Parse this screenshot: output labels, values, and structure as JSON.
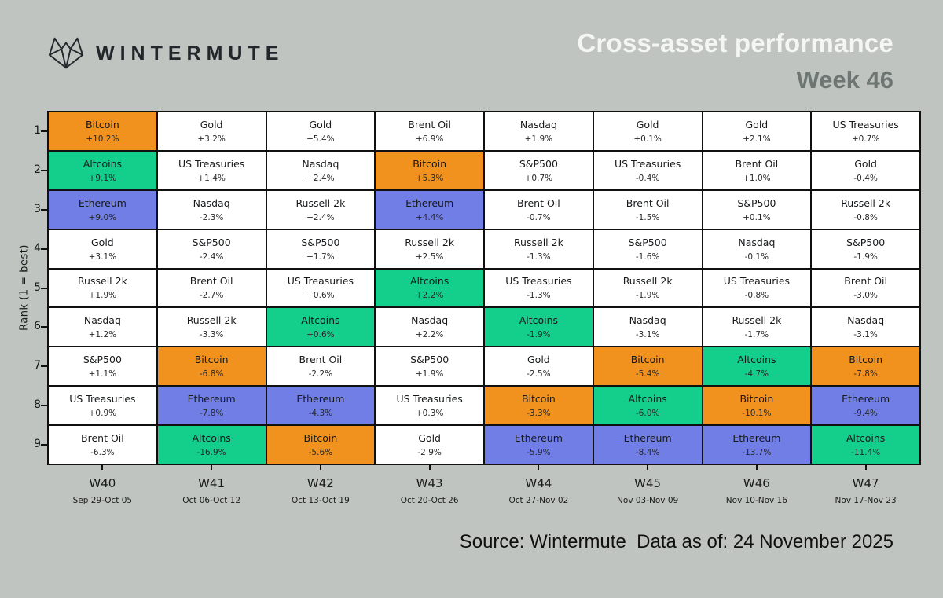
{
  "header": {
    "brand": "WINTERMUTE",
    "title": "Cross-asset performance",
    "subtitle": "Week 46"
  },
  "colors": {
    "background": "#BFC4C1",
    "grid_line": "#101010",
    "title": "#F3F6F3",
    "subtitle": "#6E7673",
    "logo": "#22272B",
    "bitcoin_orange": "#F2921E",
    "ethereum_blue": "#707EE6",
    "altcoins_green": "#14CE8C",
    "cell_white": "#FFFFFF"
  },
  "chart_data": {
    "type": "heatmap",
    "title": "Cross-asset performance",
    "subtitle": "Week 46",
    "ylabel": "Rank (1 = best)",
    "ranks": [
      "1",
      "2",
      "3",
      "4",
      "5",
      "6",
      "7",
      "8",
      "9"
    ],
    "asset_colors": {
      "Bitcoin": "#F2921E",
      "Ethereum": "#707EE6",
      "Altcoins": "#14CE8C",
      "default": "#FFFFFF"
    },
    "columns": [
      {
        "week": "W40",
        "dates": "Sep 29-Oct 05",
        "cells": [
          {
            "asset": "Bitcoin",
            "change": "+10.2%"
          },
          {
            "asset": "Altcoins",
            "change": "+9.1%"
          },
          {
            "asset": "Ethereum",
            "change": "+9.0%"
          },
          {
            "asset": "Gold",
            "change": "+3.1%"
          },
          {
            "asset": "Russell 2k",
            "change": "+1.9%"
          },
          {
            "asset": "Nasdaq",
            "change": "+1.2%"
          },
          {
            "asset": "S&P500",
            "change": "+1.1%"
          },
          {
            "asset": "US Treasuries",
            "change": "+0.9%"
          },
          {
            "asset": "Brent Oil",
            "change": "-6.3%"
          }
        ]
      },
      {
        "week": "W41",
        "dates": "Oct 06-Oct 12",
        "cells": [
          {
            "asset": "Gold",
            "change": "+3.2%"
          },
          {
            "asset": "US Treasuries",
            "change": "+1.4%"
          },
          {
            "asset": "Nasdaq",
            "change": "-2.3%"
          },
          {
            "asset": "S&P500",
            "change": "-2.4%"
          },
          {
            "asset": "Brent Oil",
            "change": "-2.7%"
          },
          {
            "asset": "Russell 2k",
            "change": "-3.3%"
          },
          {
            "asset": "Bitcoin",
            "change": "-6.8%"
          },
          {
            "asset": "Ethereum",
            "change": "-7.8%"
          },
          {
            "asset": "Altcoins",
            "change": "-16.9%"
          }
        ]
      },
      {
        "week": "W42",
        "dates": "Oct 13-Oct 19",
        "cells": [
          {
            "asset": "Gold",
            "change": "+5.4%"
          },
          {
            "asset": "Nasdaq",
            "change": "+2.4%"
          },
          {
            "asset": "Russell 2k",
            "change": "+2.4%"
          },
          {
            "asset": "S&P500",
            "change": "+1.7%"
          },
          {
            "asset": "US Treasuries",
            "change": "+0.6%"
          },
          {
            "asset": "Altcoins",
            "change": "+0.6%"
          },
          {
            "asset": "Brent Oil",
            "change": "-2.2%"
          },
          {
            "asset": "Ethereum",
            "change": "-4.3%"
          },
          {
            "asset": "Bitcoin",
            "change": "-5.6%"
          }
        ]
      },
      {
        "week": "W43",
        "dates": "Oct 20-Oct 26",
        "cells": [
          {
            "asset": "Brent Oil",
            "change": "+6.9%"
          },
          {
            "asset": "Bitcoin",
            "change": "+5.3%"
          },
          {
            "asset": "Ethereum",
            "change": "+4.4%"
          },
          {
            "asset": "Russell 2k",
            "change": "+2.5%"
          },
          {
            "asset": "Altcoins",
            "change": "+2.2%"
          },
          {
            "asset": "Nasdaq",
            "change": "+2.2%"
          },
          {
            "asset": "S&P500",
            "change": "+1.9%"
          },
          {
            "asset": "US Treasuries",
            "change": "+0.3%"
          },
          {
            "asset": "Gold",
            "change": "-2.9%"
          }
        ]
      },
      {
        "week": "W44",
        "dates": "Oct 27-Nov 02",
        "cells": [
          {
            "asset": "Nasdaq",
            "change": "+1.9%"
          },
          {
            "asset": "S&P500",
            "change": "+0.7%"
          },
          {
            "asset": "Brent Oil",
            "change": "-0.7%"
          },
          {
            "asset": "Russell 2k",
            "change": "-1.3%"
          },
          {
            "asset": "US Treasuries",
            "change": "-1.3%"
          },
          {
            "asset": "Altcoins",
            "change": "-1.9%"
          },
          {
            "asset": "Gold",
            "change": "-2.5%"
          },
          {
            "asset": "Bitcoin",
            "change": "-3.3%"
          },
          {
            "asset": "Ethereum",
            "change": "-5.9%"
          }
        ]
      },
      {
        "week": "W45",
        "dates": "Nov 03-Nov 09",
        "cells": [
          {
            "asset": "Gold",
            "change": "+0.1%"
          },
          {
            "asset": "US Treasuries",
            "change": "-0.4%"
          },
          {
            "asset": "Brent Oil",
            "change": "-1.5%"
          },
          {
            "asset": "S&P500",
            "change": "-1.6%"
          },
          {
            "asset": "Russell 2k",
            "change": "-1.9%"
          },
          {
            "asset": "Nasdaq",
            "change": "-3.1%"
          },
          {
            "asset": "Bitcoin",
            "change": "-5.4%"
          },
          {
            "asset": "Altcoins",
            "change": "-6.0%"
          },
          {
            "asset": "Ethereum",
            "change": "-8.4%"
          }
        ]
      },
      {
        "week": "W46",
        "dates": "Nov 10-Nov 16",
        "cells": [
          {
            "asset": "Gold",
            "change": "+2.1%"
          },
          {
            "asset": "Brent Oil",
            "change": "+1.0%"
          },
          {
            "asset": "S&P500",
            "change": "+0.1%"
          },
          {
            "asset": "Nasdaq",
            "change": "-0.1%"
          },
          {
            "asset": "US Treasuries",
            "change": "-0.8%"
          },
          {
            "asset": "Russell 2k",
            "change": "-1.7%"
          },
          {
            "asset": "Altcoins",
            "change": "-4.7%"
          },
          {
            "asset": "Bitcoin",
            "change": "-10.1%"
          },
          {
            "asset": "Ethereum",
            "change": "-13.7%"
          }
        ]
      },
      {
        "week": "W47",
        "dates": "Nov 17-Nov 23",
        "cells": [
          {
            "asset": "US Treasuries",
            "change": "+0.7%"
          },
          {
            "asset": "Gold",
            "change": "-0.4%"
          },
          {
            "asset": "Russell 2k",
            "change": "-0.8%"
          },
          {
            "asset": "S&P500",
            "change": "-1.9%"
          },
          {
            "asset": "Brent Oil",
            "change": "-3.0%"
          },
          {
            "asset": "Nasdaq",
            "change": "-3.1%"
          },
          {
            "asset": "Bitcoin",
            "change": "-7.8%"
          },
          {
            "asset": "Ethereum",
            "change": "-9.4%"
          },
          {
            "asset": "Altcoins",
            "change": "-11.4%"
          }
        ]
      }
    ]
  },
  "footer": {
    "source": "Source: Wintermute  Data as of: 24 November 2025"
  }
}
